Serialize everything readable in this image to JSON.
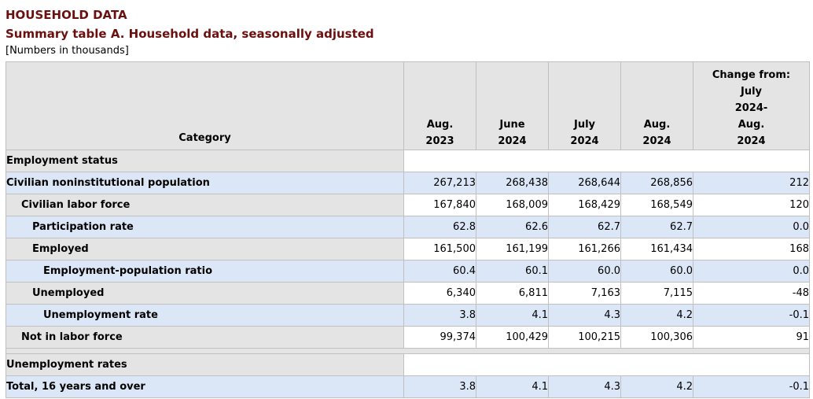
{
  "header": {
    "title": "HOUSEHOLD DATA",
    "subtitle": "Summary table A. Household data, seasonally adjusted",
    "note": "[Numbers in thousands]"
  },
  "columns": {
    "category": "Category",
    "c1": [
      "Aug.",
      "2023"
    ],
    "c2": [
      "June",
      "2024"
    ],
    "c3": [
      "July",
      "2024"
    ],
    "c4": [
      "Aug.",
      "2024"
    ],
    "change": [
      "Change from:",
      "July",
      "2024-",
      "Aug.",
      "2024"
    ]
  },
  "sections": {
    "employment_status": "Employment status",
    "unemployment_rates": "Unemployment rates"
  },
  "rows": [
    {
      "label": "Civilian noninstitutional population",
      "values": [
        "267,213",
        "268,438",
        "268,644",
        "268,856",
        "212"
      ]
    },
    {
      "label": "Civilian labor force",
      "values": [
        "167,840",
        "168,009",
        "168,429",
        "168,549",
        "120"
      ]
    },
    {
      "label": "Participation rate",
      "values": [
        "62.8",
        "62.6",
        "62.7",
        "62.7",
        "0.0"
      ]
    },
    {
      "label": "Employed",
      "values": [
        "161,500",
        "161,199",
        "161,266",
        "161,434",
        "168"
      ]
    },
    {
      "label": "Employment-population ratio",
      "values": [
        "60.4",
        "60.1",
        "60.0",
        "60.0",
        "0.0"
      ]
    },
    {
      "label": "Unemployed",
      "values": [
        "6,340",
        "6,811",
        "7,163",
        "7,115",
        "-48"
      ]
    },
    {
      "label": "Unemployment rate",
      "values": [
        "3.8",
        "4.1",
        "4.3",
        "4.2",
        "-0.1"
      ]
    },
    {
      "label": "Not in labor force",
      "values": [
        "99,374",
        "100,429",
        "100,215",
        "100,306",
        "91"
      ]
    },
    {
      "label": "Total, 16 years and over",
      "values": [
        "3.8",
        "4.1",
        "4.3",
        "4.2",
        "-0.1"
      ]
    }
  ]
}
